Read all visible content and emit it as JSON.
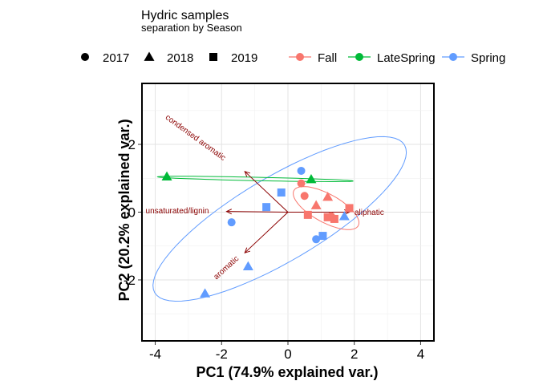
{
  "chart_data": {
    "type": "scatter",
    "title": "Hydric samples",
    "subtitle": "separation by Season",
    "xlabel": "PC1 (74.9% explained var.)",
    "ylabel": "PC2 (20.2% explained var.)",
    "xlim": [
      -4.4,
      4.4
    ],
    "ylim": [
      -3.8,
      3.8
    ],
    "xticks": [
      -4,
      -2,
      0,
      2,
      4
    ],
    "yticks": [
      -2,
      0,
      2
    ],
    "grid": true,
    "legend_position": "top",
    "colors": {
      "Fall": "#f8766d",
      "LateSpring": "#00ba38",
      "Spring": "#619cff",
      "arrow": "#8b0000"
    },
    "shape_legend": [
      {
        "label": "2017",
        "shape": "circle"
      },
      {
        "label": "2018",
        "shape": "triangle"
      },
      {
        "label": "2019",
        "shape": "square"
      }
    ],
    "color_legend": [
      "Fall",
      "LateSpring",
      "Spring"
    ],
    "points": [
      {
        "season": "LateSpring",
        "year": "2018",
        "x": -3.65,
        "y": 1.05
      },
      {
        "season": "LateSpring",
        "year": "2018",
        "x": 0.7,
        "y": 0.97
      },
      {
        "season": "Spring",
        "year": "2017",
        "x": 0.4,
        "y": 1.22
      },
      {
        "season": "Spring",
        "year": "2019",
        "x": -0.2,
        "y": 0.58
      },
      {
        "season": "Spring",
        "year": "2019",
        "x": -0.65,
        "y": 0.15
      },
      {
        "season": "Spring",
        "year": "2017",
        "x": -1.7,
        "y": -0.3
      },
      {
        "season": "Spring",
        "year": "2018",
        "x": -1.2,
        "y": -1.6
      },
      {
        "season": "Spring",
        "year": "2018",
        "x": -2.5,
        "y": -2.4
      },
      {
        "season": "Spring",
        "year": "2017",
        "x": 0.85,
        "y": -0.8
      },
      {
        "season": "Spring",
        "year": "2019",
        "x": 1.05,
        "y": -0.7
      },
      {
        "season": "Spring",
        "year": "2018",
        "x": 1.7,
        "y": -0.12
      },
      {
        "season": "Fall",
        "year": "2017",
        "x": 0.4,
        "y": 0.85
      },
      {
        "season": "Fall",
        "year": "2017",
        "x": 0.5,
        "y": 0.48
      },
      {
        "season": "Fall",
        "year": "2019",
        "x": 0.6,
        "y": -0.08
      },
      {
        "season": "Fall",
        "year": "2018",
        "x": 0.85,
        "y": 0.2
      },
      {
        "season": "Fall",
        "year": "2018",
        "x": 1.2,
        "y": 0.45
      },
      {
        "season": "Fall",
        "year": "2019",
        "x": 1.2,
        "y": -0.15
      },
      {
        "season": "Fall",
        "year": "2017",
        "x": 1.3,
        "y": -0.12
      },
      {
        "season": "Fall",
        "year": "2019",
        "x": 1.4,
        "y": -0.2
      },
      {
        "season": "Fall",
        "year": "2019",
        "x": 1.85,
        "y": 0.12
      }
    ],
    "ellipses": [
      {
        "season": "Spring",
        "cx": -0.25,
        "cy": -0.2,
        "rx": 4.35,
        "ry": 1.25,
        "angle_deg": 30
      },
      {
        "season": "Fall",
        "cx": 1.15,
        "cy": 0.12,
        "rx": 1.1,
        "ry": 0.42,
        "angle_deg": -28
      },
      {
        "season": "LateSpring",
        "cx": -0.98,
        "cy": 0.98,
        "rx": 2.95,
        "ry": 0.05,
        "angle_deg": -1.2
      }
    ],
    "arrows": [
      {
        "label": "condensed aromatic",
        "x": -1.3,
        "y": 1.2
      },
      {
        "label": "unsaturated/lignin",
        "x": -1.85,
        "y": 0.02
      },
      {
        "label": "aliphatic",
        "x": 1.85,
        "y": 0.0
      },
      {
        "label": "aromatic",
        "x": -1.3,
        "y": -1.2
      }
    ],
    "arrow_origin": {
      "x": 0,
      "y": 0
    }
  }
}
